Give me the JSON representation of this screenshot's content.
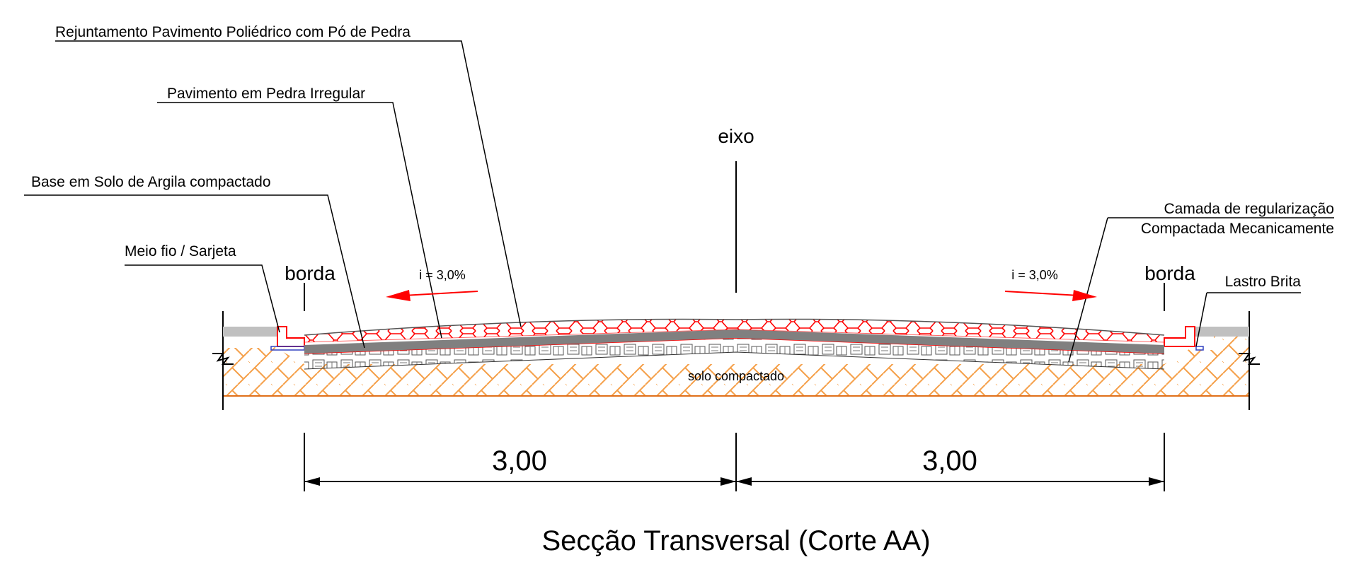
{
  "labels": {
    "rejuntamento": "Rejuntamento Pavimento Poliédrico com Pó de Pedra",
    "pavimento": "Pavimento em Pedra Irregular",
    "base": "Base em Solo de Argila compactado",
    "meio_fio": "Meio fio / Sarjeta",
    "camada_line1": "Camada de regularização",
    "camada_line2": "Compactada Mecanicamente",
    "lastro": "Lastro Brita",
    "solo": "solo compactado"
  },
  "markers": {
    "eixo": "eixo",
    "borda_left": "borda",
    "borda_right": "borda"
  },
  "slopes": {
    "left": "i = 3,0%",
    "right": "i = 3,0%"
  },
  "dimensions": {
    "left": "3,00",
    "right": "3,00"
  },
  "title": "Secção Transversal (Corte AA)",
  "colors": {
    "paving_joint_red": "#ff0000",
    "base_gray": "#808080",
    "curb_gray": "#c0c0c0",
    "soil_hatch": "#f5a04a",
    "soil_border": "#e0701a",
    "lastro_blue": "#3040c0"
  }
}
